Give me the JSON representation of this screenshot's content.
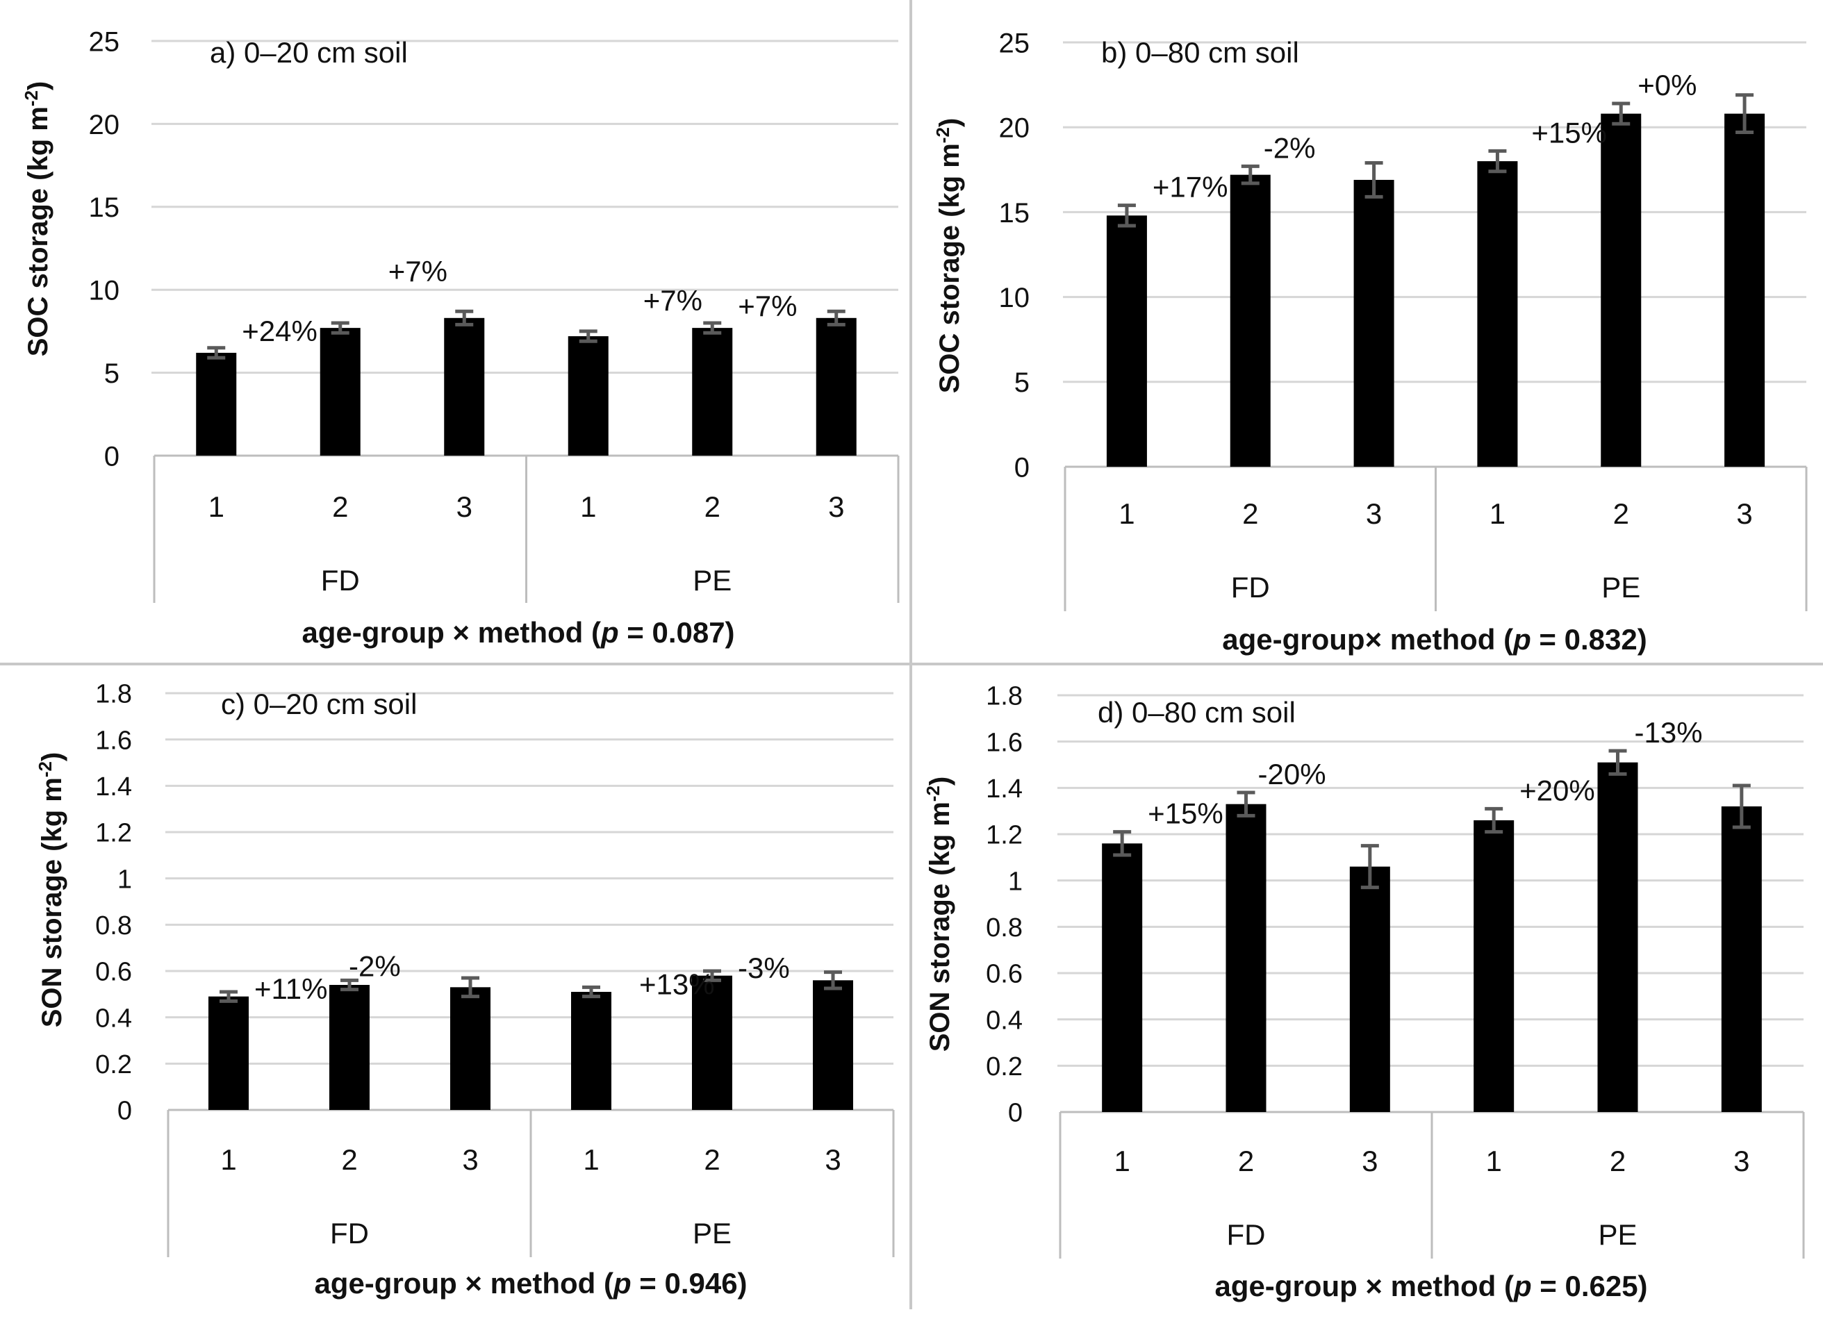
{
  "chart_data": [
    {
      "type": "bar",
      "panel_title": "a) 0–20 cm soil",
      "ylabel": "SOC storage (kg m-2)",
      "ylabel_parts": {
        "base": "SOC storage (kg m",
        "sup": "-2",
        "close": ")"
      },
      "ylim": [
        0,
        25
      ],
      "yticks": [
        "0",
        "5",
        "10",
        "15",
        "20",
        "25"
      ],
      "ytick_values": [
        0,
        5,
        10,
        15,
        20,
        25
      ],
      "grid": true,
      "categories": [
        "1",
        "2",
        "3",
        "1",
        "2",
        "3"
      ],
      "groups": [
        "FD",
        "PE"
      ],
      "values": [
        6.2,
        7.7,
        8.3,
        7.2,
        7.7,
        8.3
      ],
      "errors": [
        0.3,
        0.3,
        0.4,
        0.3,
        0.3,
        0.4
      ],
      "annotations": [
        "+24%",
        "+7%",
        "+7%",
        "+7%"
      ],
      "xlabel_parts": {
        "pre": "age-group × method (",
        "p": "p",
        "post": " = 0.087)"
      }
    },
    {
      "type": "bar",
      "panel_title": "b) 0–80 cm soil",
      "ylabel": "SOC storage (kg m-2)",
      "ylabel_parts": {
        "base": "SOC storage (kg m",
        "sup": "-2",
        "close": ")"
      },
      "ylim": [
        0,
        25
      ],
      "yticks": [
        "0",
        "5",
        "10",
        "15",
        "20",
        "25"
      ],
      "ytick_values": [
        0,
        5,
        10,
        15,
        20,
        25
      ],
      "grid": true,
      "categories": [
        "1",
        "2",
        "3",
        "1",
        "2",
        "3"
      ],
      "groups": [
        "FD",
        "PE"
      ],
      "values": [
        14.8,
        17.2,
        16.9,
        18.0,
        20.8,
        20.8
      ],
      "errors": [
        0.6,
        0.5,
        1.0,
        0.6,
        0.6,
        1.1
      ],
      "annotations": [
        "+17%",
        "-2%",
        "+15%",
        "+0%"
      ],
      "xlabel_parts": {
        "pre": "age-group× method (",
        "p": "p",
        "post": " = 0.832)"
      }
    },
    {
      "type": "bar",
      "panel_title": "c) 0–20 cm soil",
      "ylabel": "SON storage (kg m-2)",
      "ylabel_parts": {
        "base": "SON storage (kg m",
        "sup": "-2",
        "close": ")"
      },
      "ylim": [
        0,
        1.8
      ],
      "yticks": [
        "0",
        "0.2",
        "0.4",
        "0.6",
        "0.8",
        "1",
        "1.2",
        "1.4",
        "1.6",
        "1.8"
      ],
      "ytick_values": [
        0,
        0.2,
        0.4,
        0.6,
        0.8,
        1,
        1.2,
        1.4,
        1.6,
        1.8
      ],
      "grid": true,
      "categories": [
        "1",
        "2",
        "3",
        "1",
        "2",
        "3"
      ],
      "groups": [
        "FD",
        "PE"
      ],
      "values": [
        0.49,
        0.54,
        0.53,
        0.51,
        0.58,
        0.56
      ],
      "errors": [
        0.02,
        0.02,
        0.04,
        0.02,
        0.02,
        0.035
      ],
      "annotations": [
        "+11%",
        "-2%",
        "+13%",
        "-3%"
      ],
      "xlabel_parts": {
        "pre": "age-group × method (",
        "p": "p",
        "post": " = 0.946)"
      }
    },
    {
      "type": "bar",
      "panel_title": "d) 0–80 cm soil",
      "ylabel": "SON storage (kg m-2)",
      "ylabel_parts": {
        "base": "SON storage (kg m",
        "sup": "-2",
        "close": ")"
      },
      "ylim": [
        0,
        1.8
      ],
      "yticks": [
        "0",
        "0.2",
        "0.4",
        "0.6",
        "0.8",
        "1",
        "1.2",
        "1.4",
        "1.6",
        "1.8"
      ],
      "ytick_values": [
        0,
        0.2,
        0.4,
        0.6,
        0.8,
        1,
        1.2,
        1.4,
        1.6,
        1.8
      ],
      "grid": true,
      "categories": [
        "1",
        "2",
        "3",
        "1",
        "2",
        "3"
      ],
      "groups": [
        "FD",
        "PE"
      ],
      "values": [
        1.16,
        1.33,
        1.06,
        1.26,
        1.51,
        1.32
      ],
      "errors": [
        0.05,
        0.05,
        0.09,
        0.05,
        0.05,
        0.09
      ],
      "annotations": [
        "+15%",
        "-20%",
        "+20%",
        "-13%"
      ],
      "xlabel_parts": {
        "pre": "age-group × method (",
        "p": "p",
        "post": " = 0.625)"
      }
    }
  ]
}
